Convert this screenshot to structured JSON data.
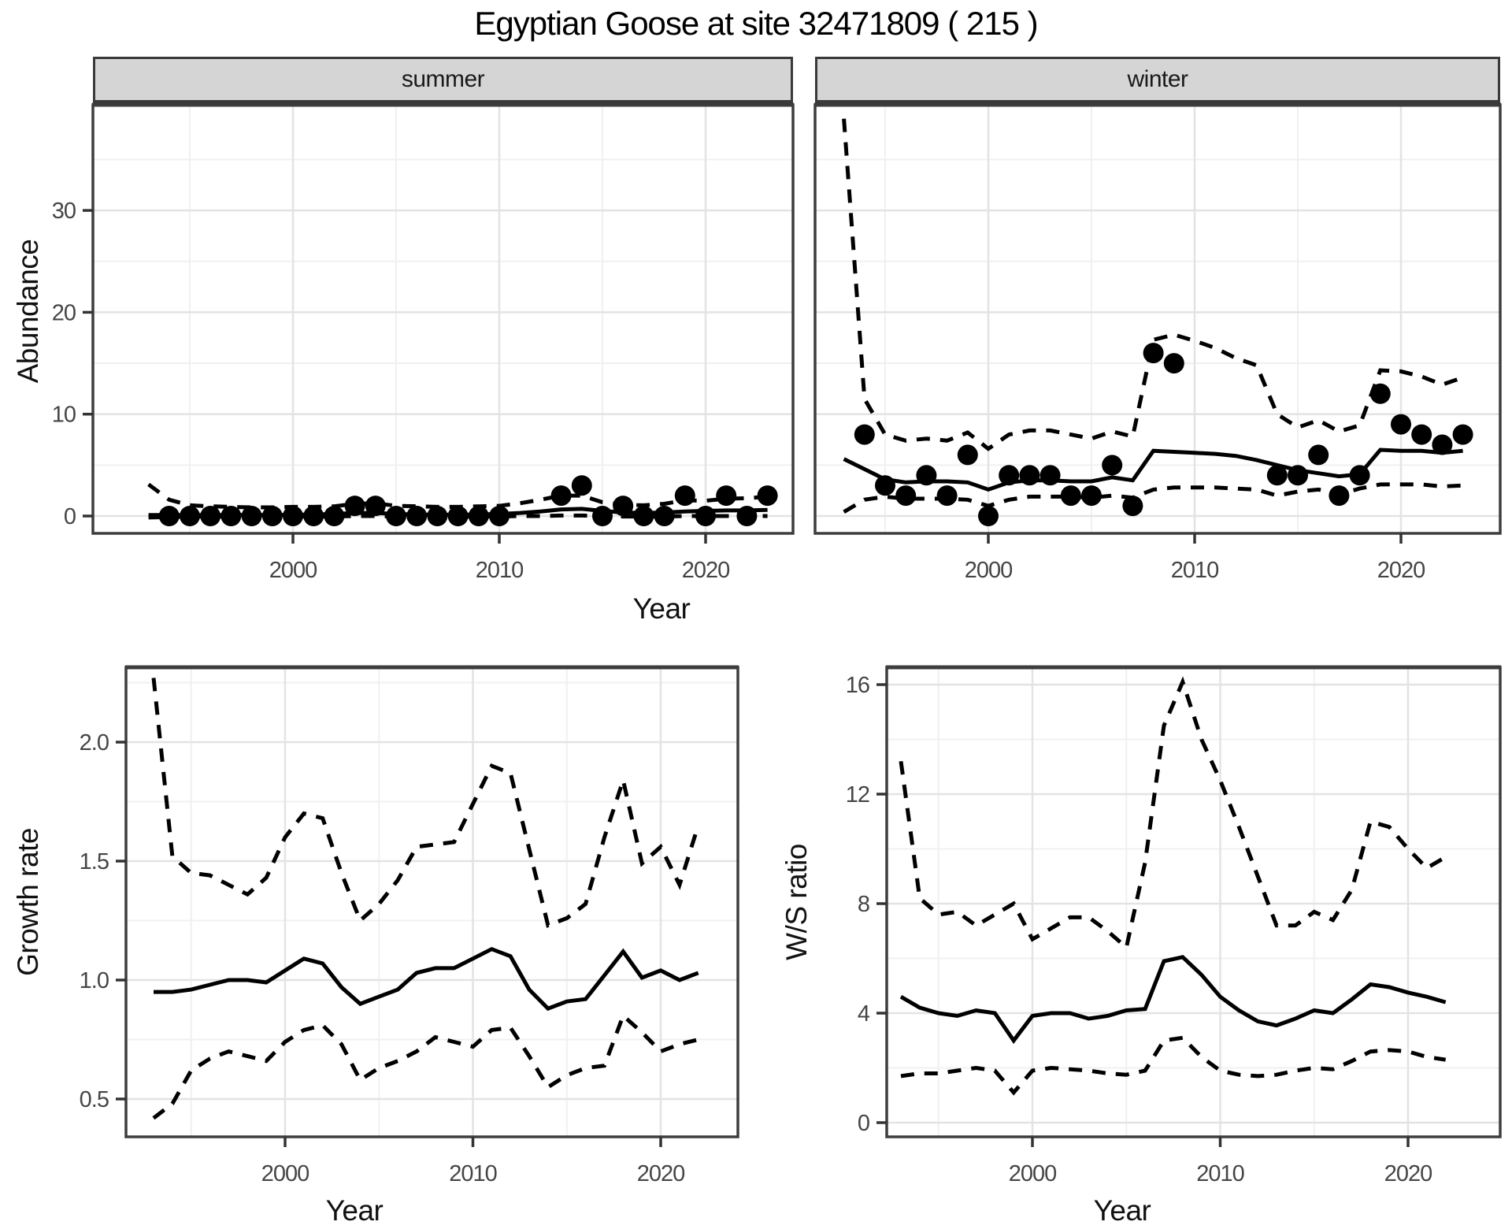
{
  "title": "Egyptian Goose at site 32471809 ( 215 )",
  "facets": {
    "summer": "summer",
    "winter": "winter"
  },
  "axis_titles": {
    "abundance": "Abundance",
    "year_top": "Year",
    "growth_rate": "Growth rate",
    "ws_ratio": "W/S ratio",
    "year_bottom_left": "Year",
    "year_bottom_right": "Year"
  },
  "colors": {
    "summer_point": "#70bf5b",
    "winter_point": "#b592c8",
    "line": "#000000",
    "grid_major": "#e3e3e3",
    "grid_minor": "#f0f0f0",
    "panel_border": "#3d3d3d",
    "strip_bg": "#d5d5d5",
    "tick_text": "#454545"
  },
  "chart_data": [
    {
      "id": "abundance-summer",
      "type": "scatter",
      "facet": "summer",
      "ylabel": "Abundance",
      "xlabel": "Year",
      "xlim": [
        1990.3,
        2024.2
      ],
      "ylim": [
        -1.7,
        40.4
      ],
      "x_ticks": [
        2000,
        2010,
        2020
      ],
      "x_tick_labels": [
        "2000",
        "2010",
        "2020"
      ],
      "x_minor": [
        1995,
        2005,
        2015
      ],
      "y_ticks": [
        0,
        10,
        20,
        30
      ],
      "y_tick_labels": [
        "0",
        "10",
        "20",
        "30"
      ],
      "y_minor": [
        5,
        15,
        25,
        35
      ],
      "points": {
        "x": [
          1994,
          1995,
          1996,
          1997,
          1998,
          1999,
          2000,
          2001,
          2002,
          2003,
          2004,
          2005,
          2006,
          2007,
          2008,
          2009,
          2010,
          2013,
          2014,
          2015,
          2016,
          2017,
          2018,
          2019,
          2020,
          2021,
          2022,
          2023
        ],
        "y": [
          0,
          0,
          0,
          0,
          0,
          0,
          0,
          0,
          0,
          1,
          1,
          0,
          0,
          0,
          0,
          0,
          0,
          2,
          3,
          0,
          1,
          0,
          0,
          2,
          0,
          2,
          0,
          2
        ]
      },
      "series": [
        {
          "name": "upper-ci",
          "style": "dashed",
          "x": [
            1993,
            1994,
            1995,
            1996,
            1997,
            1998,
            1999,
            2000,
            2001,
            2002,
            2003,
            2004,
            2005,
            2006,
            2007,
            2008,
            2009,
            2010,
            2011,
            2012,
            2013,
            2014,
            2015,
            2016,
            2017,
            2018,
            2019,
            2020,
            2021,
            2022,
            2023
          ],
          "y": [
            3.1,
            1.6,
            1.05,
            0.95,
            0.9,
            0.85,
            0.85,
            0.9,
            0.9,
            0.95,
            1.2,
            1.25,
            1.0,
            0.95,
            0.9,
            0.9,
            0.95,
            1.0,
            1.25,
            1.6,
            2.0,
            2.0,
            1.35,
            1.1,
            1.05,
            1.2,
            1.55,
            1.5,
            1.7,
            1.75,
            1.9
          ]
        },
        {
          "name": "lower-ci",
          "style": "dashed",
          "x": [
            1993,
            1994,
            1995,
            1996,
            1997,
            1998,
            1999,
            2000,
            2001,
            2002,
            2003,
            2004,
            2005,
            2006,
            2007,
            2008,
            2009,
            2010,
            2011,
            2012,
            2013,
            2014,
            2015,
            2016,
            2017,
            2018,
            2019,
            2020,
            2021,
            2022,
            2023
          ],
          "y": [
            -0.15,
            -0.1,
            -0.05,
            -0.05,
            -0.05,
            -0.05,
            -0.05,
            -0.05,
            -0.05,
            -0.05,
            0,
            0,
            -0.05,
            -0.05,
            -0.05,
            -0.05,
            -0.05,
            -0.05,
            0,
            0,
            0.05,
            0.05,
            0,
            -0.05,
            -0.05,
            -0.05,
            0,
            0,
            0,
            0,
            0
          ]
        },
        {
          "name": "estimate",
          "style": "solid",
          "x": [
            1993,
            1994,
            1995,
            1996,
            1997,
            1998,
            1999,
            2000,
            2001,
            2002,
            2003,
            2004,
            2005,
            2006,
            2007,
            2008,
            2009,
            2010,
            2011,
            2012,
            2013,
            2014,
            2015,
            2016,
            2017,
            2018,
            2019,
            2020,
            2021,
            2022,
            2023
          ],
          "y": [
            0.1,
            0.1,
            0.1,
            0.1,
            0.1,
            0.1,
            0.1,
            0.12,
            0.15,
            0.2,
            0.3,
            0.3,
            0.2,
            0.15,
            0.12,
            0.12,
            0.15,
            0.2,
            0.3,
            0.45,
            0.65,
            0.7,
            0.5,
            0.35,
            0.3,
            0.35,
            0.45,
            0.5,
            0.55,
            0.55,
            0.6
          ]
        }
      ]
    },
    {
      "id": "abundance-winter",
      "type": "scatter",
      "facet": "winter",
      "ylabel": "Abundance",
      "xlabel": "Year",
      "xlim": [
        1991.6,
        2024.8
      ],
      "ylim": [
        -1.7,
        40.4
      ],
      "x_ticks": [
        2000,
        2010,
        2020
      ],
      "x_tick_labels": [
        "2000",
        "2010",
        "2020"
      ],
      "x_minor": [
        1995,
        2005,
        2015
      ],
      "y_ticks": [
        0,
        10,
        20,
        30
      ],
      "y_tick_labels": [
        "0",
        "10",
        "20",
        "30"
      ],
      "y_minor": [
        5,
        15,
        25,
        35
      ],
      "points": {
        "x": [
          1994,
          1995,
          1996,
          1997,
          1998,
          1999,
          2000,
          2001,
          2002,
          2003,
          2004,
          2005,
          2006,
          2007,
          2008,
          2009,
          2014,
          2015,
          2016,
          2017,
          2018,
          2019,
          2020,
          2021,
          2022,
          2023
        ],
        "y": [
          8,
          3,
          2,
          4,
          2,
          6,
          0,
          4,
          4,
          4,
          2,
          2,
          5,
          1,
          16,
          15,
          4,
          4,
          6,
          2,
          4,
          12,
          9,
          8,
          7,
          8
        ]
      },
      "series": [
        {
          "name": "upper-ci",
          "style": "dashed",
          "x": [
            1993,
            1994,
            1995,
            1996,
            1997,
            1998,
            1999,
            2000,
            2001,
            2002,
            2003,
            2004,
            2005,
            2006,
            2007,
            2008,
            2009,
            2010,
            2011,
            2012,
            2013,
            2014,
            2015,
            2016,
            2017,
            2018,
            2019,
            2020,
            2021,
            2022,
            2023
          ],
          "y": [
            39,
            11.5,
            8.0,
            7.4,
            7.6,
            7.4,
            8.2,
            6.6,
            8.0,
            8.4,
            8.4,
            8.0,
            7.6,
            8.3,
            7.8,
            17.3,
            17.8,
            17.2,
            16.5,
            15.5,
            14.8,
            10.0,
            8.7,
            9.4,
            8.3,
            8.9,
            14.3,
            14.2,
            13.7,
            12.9,
            13.6
          ]
        },
        {
          "name": "lower-ci",
          "style": "dashed",
          "x": [
            1993,
            1994,
            1995,
            1996,
            1997,
            1998,
            1999,
            2000,
            2001,
            2002,
            2003,
            2004,
            2005,
            2006,
            2007,
            2008,
            2009,
            2010,
            2011,
            2012,
            2013,
            2014,
            2015,
            2016,
            2017,
            2018,
            2019,
            2020,
            2021,
            2022,
            2023
          ],
          "y": [
            0.4,
            1.6,
            1.9,
            1.7,
            1.7,
            1.7,
            1.6,
            1.0,
            1.6,
            1.9,
            1.9,
            1.9,
            1.8,
            2.0,
            1.8,
            2.6,
            2.8,
            2.8,
            2.8,
            2.7,
            2.6,
            2.0,
            2.4,
            2.6,
            2.1,
            2.7,
            3.1,
            3.1,
            3.1,
            2.9,
            3.0
          ]
        },
        {
          "name": "estimate",
          "style": "solid",
          "x": [
            1993,
            1994,
            1995,
            1996,
            1997,
            1998,
            1999,
            2000,
            2001,
            2002,
            2003,
            2004,
            2005,
            2006,
            2007,
            2008,
            2009,
            2010,
            2011,
            2012,
            2013,
            2014,
            2015,
            2016,
            2017,
            2018,
            2019,
            2020,
            2021,
            2022,
            2023
          ],
          "y": [
            5.6,
            4.6,
            3.6,
            3.3,
            3.4,
            3.4,
            3.3,
            2.6,
            3.3,
            3.5,
            3.5,
            3.4,
            3.4,
            3.8,
            3.5,
            6.4,
            6.3,
            6.2,
            6.1,
            5.9,
            5.5,
            5.0,
            4.5,
            4.2,
            3.9,
            4.1,
            6.5,
            6.4,
            6.4,
            6.2,
            6.4
          ]
        }
      ]
    },
    {
      "id": "growth-rate",
      "type": "line",
      "ylabel": "Growth rate",
      "xlabel": "Year",
      "xlim": [
        1991.5,
        2024.2
      ],
      "ylim": [
        0.34,
        2.32
      ],
      "x_ticks": [
        2000,
        2010,
        2020
      ],
      "x_tick_labels": [
        "2000",
        "2010",
        "2020"
      ],
      "x_minor": [
        1995,
        2005,
        2015
      ],
      "y_ticks": [
        0.5,
        1.0,
        1.5,
        2.0
      ],
      "y_tick_labels": [
        "0.5",
        "1.0",
        "1.5",
        "2.0"
      ],
      "y_minor": [
        0.75,
        1.25,
        1.75,
        2.25
      ],
      "series": [
        {
          "name": "upper-ci",
          "style": "dashed",
          "x": [
            1993,
            1994,
            1995,
            1996,
            1997,
            1998,
            1999,
            2000,
            2001,
            2002,
            2003,
            2004,
            2005,
            2006,
            2007,
            2008,
            2009,
            2010,
            2011,
            2012,
            2013,
            2014,
            2015,
            2016,
            2017,
            2018,
            2019,
            2020,
            2021,
            2022
          ],
          "y": [
            2.27,
            1.52,
            1.45,
            1.44,
            1.4,
            1.36,
            1.43,
            1.6,
            1.7,
            1.68,
            1.45,
            1.25,
            1.32,
            1.42,
            1.56,
            1.57,
            1.58,
            1.74,
            1.9,
            1.87,
            1.55,
            1.23,
            1.26,
            1.32,
            1.6,
            1.84,
            1.49,
            1.56,
            1.4,
            1.65
          ]
        },
        {
          "name": "lower-ci",
          "style": "dashed",
          "x": [
            1993,
            1994,
            1995,
            1996,
            1997,
            1998,
            1999,
            2000,
            2001,
            2002,
            2003,
            2004,
            2005,
            2006,
            2007,
            2008,
            2009,
            2010,
            2011,
            2012,
            2013,
            2014,
            2015,
            2016,
            2017,
            2018,
            2019,
            2020,
            2021,
            2022
          ],
          "y": [
            0.42,
            0.48,
            0.62,
            0.67,
            0.7,
            0.68,
            0.66,
            0.74,
            0.79,
            0.81,
            0.73,
            0.58,
            0.63,
            0.66,
            0.7,
            0.76,
            0.74,
            0.72,
            0.79,
            0.8,
            0.68,
            0.55,
            0.6,
            0.63,
            0.64,
            0.85,
            0.78,
            0.7,
            0.73,
            0.75
          ]
        },
        {
          "name": "estimate",
          "style": "solid",
          "x": [
            1993,
            1994,
            1995,
            1996,
            1997,
            1998,
            1999,
            2000,
            2001,
            2002,
            2003,
            2004,
            2005,
            2006,
            2007,
            2008,
            2009,
            2010,
            2011,
            2012,
            2013,
            2014,
            2015,
            2016,
            2017,
            2018,
            2019,
            2020,
            2021,
            2022
          ],
          "y": [
            0.95,
            0.95,
            0.96,
            0.98,
            1.0,
            1.0,
            0.99,
            1.04,
            1.09,
            1.07,
            0.97,
            0.9,
            0.93,
            0.96,
            1.03,
            1.05,
            1.05,
            1.09,
            1.13,
            1.1,
            0.96,
            0.88,
            0.91,
            0.92,
            1.02,
            1.12,
            1.01,
            1.04,
            1.0,
            1.03
          ]
        }
      ]
    },
    {
      "id": "ws-ratio",
      "type": "line",
      "ylabel": "W/S ratio",
      "xlabel": "Year",
      "xlim": [
        1992.2,
        2024.8
      ],
      "ylim": [
        -0.5,
        16.6
      ],
      "x_ticks": [
        2000,
        2010,
        2020
      ],
      "x_tick_labels": [
        "2000",
        "2010",
        "2020"
      ],
      "x_minor": [
        1995,
        2005,
        2015
      ],
      "y_ticks": [
        0,
        4,
        8,
        12,
        16
      ],
      "y_tick_labels": [
        "0",
        "4",
        "8",
        "12",
        "16"
      ],
      "y_minor": [
        2,
        6,
        10,
        14
      ],
      "series": [
        {
          "name": "upper-ci",
          "style": "dashed",
          "x": [
            1993,
            1994,
            1995,
            1996,
            1997,
            1998,
            1999,
            2000,
            2001,
            2002,
            2003,
            2004,
            2005,
            2006,
            2007,
            2008,
            2009,
            2010,
            2011,
            2012,
            2013,
            2014,
            2015,
            2016,
            2017,
            2018,
            2019,
            2020,
            2021,
            2022
          ],
          "y": [
            13.2,
            8.2,
            7.6,
            7.7,
            7.2,
            7.6,
            8.0,
            6.7,
            7.1,
            7.5,
            7.5,
            7.0,
            6.4,
            9.5,
            14.5,
            16.1,
            14.0,
            12.5,
            10.8,
            9.0,
            7.2,
            7.2,
            7.7,
            7.4,
            8.5,
            11.0,
            10.8,
            10.0,
            9.3,
            9.7
          ]
        },
        {
          "name": "lower-ci",
          "style": "dashed",
          "x": [
            1993,
            1994,
            1995,
            1996,
            1997,
            1998,
            1999,
            2000,
            2001,
            2002,
            2003,
            2004,
            2005,
            2006,
            2007,
            2008,
            2009,
            2010,
            2011,
            2012,
            2013,
            2014,
            2015,
            2016,
            2017,
            2018,
            2019,
            2020,
            2021,
            2022
          ],
          "y": [
            1.7,
            1.8,
            1.8,
            1.9,
            2.0,
            1.9,
            1.1,
            1.9,
            2.0,
            1.95,
            1.9,
            1.8,
            1.75,
            1.9,
            3.0,
            3.1,
            2.4,
            1.9,
            1.75,
            1.7,
            1.75,
            1.9,
            2.0,
            1.95,
            2.25,
            2.6,
            2.65,
            2.6,
            2.4,
            2.3
          ]
        },
        {
          "name": "estimate",
          "style": "solid",
          "x": [
            1993,
            1994,
            1995,
            1996,
            1997,
            1998,
            1999,
            2000,
            2001,
            2002,
            2003,
            2004,
            2005,
            2006,
            2007,
            2008,
            2009,
            2010,
            2011,
            2012,
            2013,
            2014,
            2015,
            2016,
            2017,
            2018,
            2019,
            2020,
            2021,
            2022
          ],
          "y": [
            4.6,
            4.2,
            4.0,
            3.9,
            4.1,
            4.0,
            3.0,
            3.9,
            4.0,
            4.0,
            3.8,
            3.9,
            4.1,
            4.15,
            5.9,
            6.05,
            5.4,
            4.6,
            4.1,
            3.7,
            3.55,
            3.8,
            4.1,
            4.0,
            4.5,
            5.05,
            4.95,
            4.75,
            4.6,
            4.4
          ]
        }
      ]
    }
  ]
}
